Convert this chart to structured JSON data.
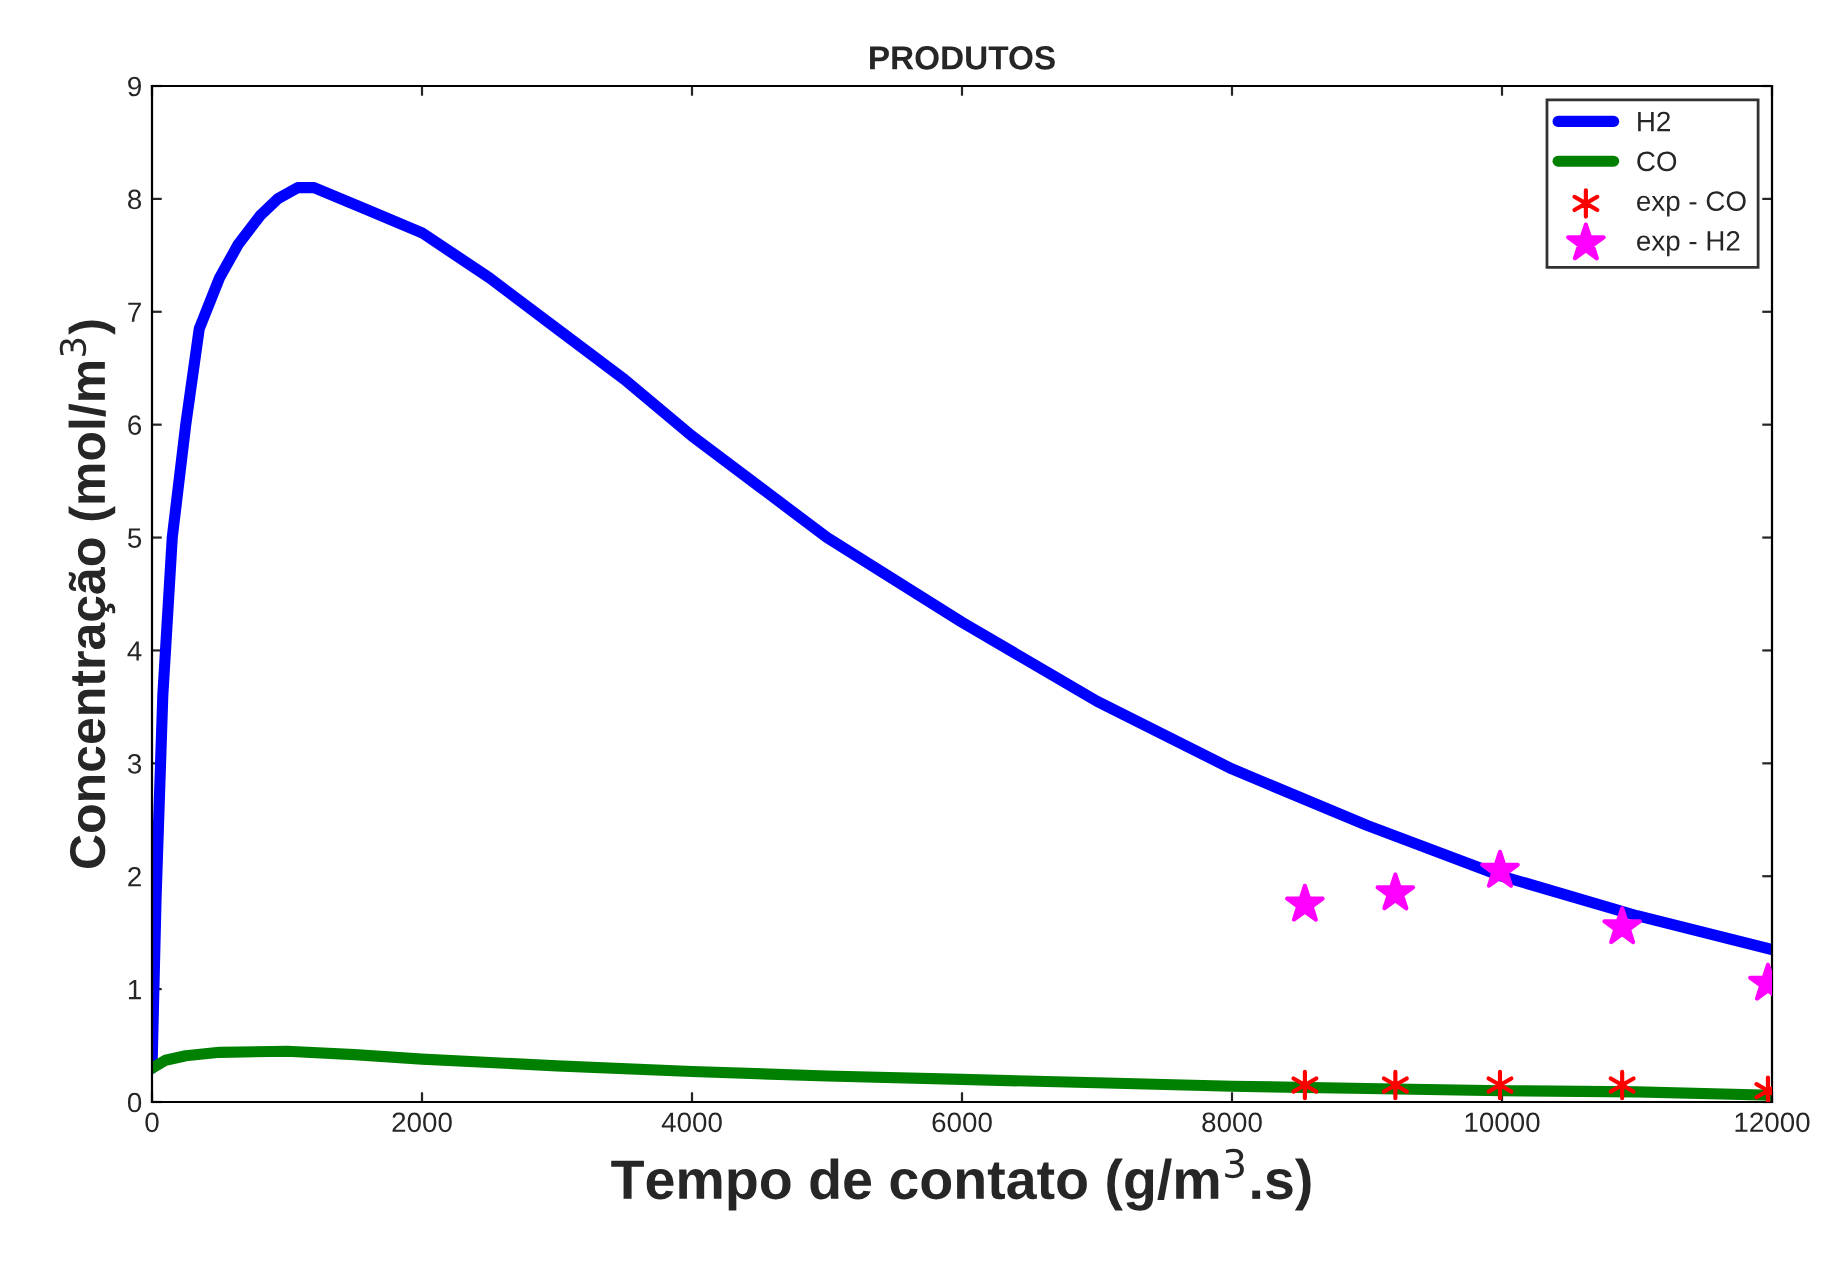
{
  "chart_data": {
    "type": "line",
    "title": "PRODUTOS",
    "xlabel": "Tempo de contato (g/m$^{3}$.s)",
    "ylabel": "Concentração (mol/m$^{3}$)",
    "xlim": [
      0,
      12000
    ],
    "ylim": [
      0,
      9
    ],
    "xticks": [
      0,
      2000,
      4000,
      6000,
      8000,
      10000,
      12000
    ],
    "yticks": [
      0,
      1,
      2,
      3,
      4,
      5,
      6,
      7,
      8,
      9
    ],
    "grid": false,
    "legend": "top right",
    "series": [
      {
        "name": "H2",
        "color": "#0000ff",
        "marker": "none",
        "x": [
          0,
          30,
          80,
          150,
          250,
          350,
          500,
          640,
          800,
          930,
          1080,
          1200,
          1400,
          1600,
          2000,
          2500,
          3000,
          3500,
          4000,
          4500,
          5000,
          6000,
          7000,
          8000,
          9000,
          10000,
          11000,
          12000
        ],
        "values": [
          0.3,
          1.8,
          3.6,
          5.0,
          6.0,
          6.85,
          7.3,
          7.6,
          7.85,
          8.0,
          8.1,
          8.1,
          8.0,
          7.9,
          7.7,
          7.3,
          6.85,
          6.4,
          5.9,
          5.45,
          5.0,
          4.25,
          3.55,
          2.95,
          2.45,
          2.0,
          1.65,
          1.35
        ]
      },
      {
        "name": "CO",
        "color": "#008000",
        "marker": "none",
        "x": [
          0,
          100,
          250,
          500,
          1000,
          1500,
          2000,
          3000,
          4000,
          5000,
          6000,
          7000,
          8000,
          9000,
          10000,
          11000,
          12000
        ],
        "values": [
          0.3,
          0.37,
          0.41,
          0.44,
          0.45,
          0.42,
          0.38,
          0.32,
          0.27,
          0.23,
          0.2,
          0.17,
          0.14,
          0.12,
          0.1,
          0.09,
          0.06
        ]
      },
      {
        "name": "exp - CO",
        "color": "#ff0000",
        "type": "scatter",
        "marker": "cross",
        "x": [
          8540,
          9210,
          9985,
          10890,
          11970
        ],
        "values": [
          0.15,
          0.15,
          0.15,
          0.15,
          0.1
        ]
      },
      {
        "name": "exp - H2",
        "color": "#ff00ff",
        "type": "scatter",
        "marker": "star",
        "x": [
          8540,
          9210,
          9985,
          10890,
          11970
        ],
        "values": [
          1.75,
          1.85,
          2.05,
          1.55,
          1.05
        ]
      }
    ]
  }
}
